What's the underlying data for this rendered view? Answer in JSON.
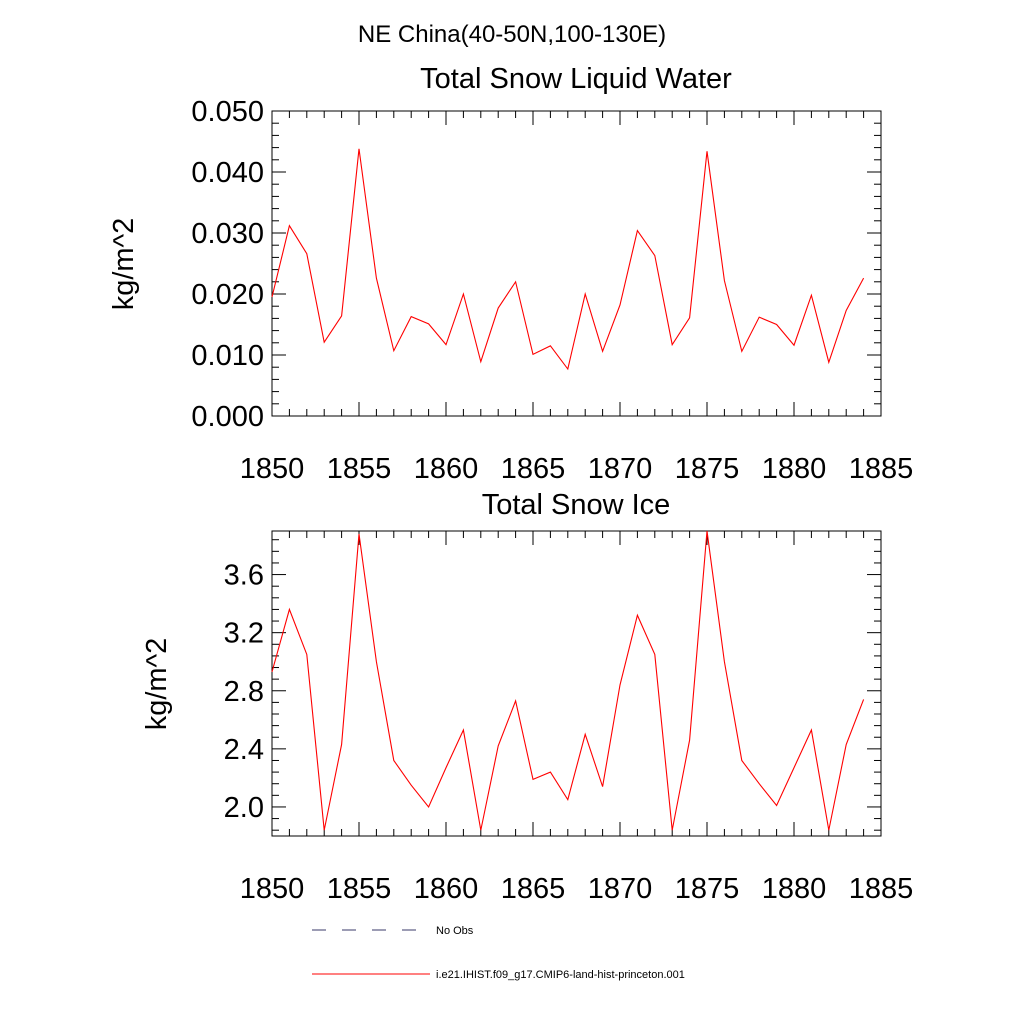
{
  "page_title": "NE China(40-50N,100-130E)",
  "chart_data": [
    {
      "type": "line",
      "title": "Total Snow Liquid Water",
      "xlabel": "",
      "ylabel": "kg/m^2",
      "xlim": [
        1850,
        1885
      ],
      "ylim": [
        0.0,
        0.05
      ],
      "xticks": [
        "1850",
        "1855",
        "1860",
        "1865",
        "1870",
        "1875",
        "1880",
        "1885"
      ],
      "yticks": [
        "0.000",
        "0.010",
        "0.020",
        "0.030",
        "0.040",
        "0.050"
      ],
      "grid": false,
      "series": [
        {
          "name": "i.e21.IHIST.f09_g17.CMIP6-land-hist-princeton.001",
          "color": "#ff0000",
          "x": [
            1850,
            1851,
            1852,
            1853,
            1854,
            1855,
            1856,
            1857,
            1858,
            1859,
            1860,
            1861,
            1862,
            1863,
            1864,
            1865,
            1866,
            1867,
            1868,
            1869,
            1870,
            1871,
            1872,
            1873,
            1874,
            1875,
            1876,
            1877,
            1878,
            1879,
            1880,
            1881,
            1882,
            1883,
            1884
          ],
          "values": [
            0.0195,
            0.0312,
            0.0266,
            0.0121,
            0.0164,
            0.0438,
            0.0226,
            0.0107,
            0.0163,
            0.0151,
            0.0117,
            0.02,
            0.0089,
            0.0177,
            0.022,
            0.0101,
            0.0115,
            0.0077,
            0.02,
            0.0106,
            0.0182,
            0.0304,
            0.0263,
            0.0117,
            0.0161,
            0.0434,
            0.0222,
            0.0106,
            0.0162,
            0.015,
            0.0116,
            0.0198,
            0.0088,
            0.0173,
            0.0226
          ]
        }
      ]
    },
    {
      "type": "line",
      "title": "Total Snow Ice",
      "xlabel": "",
      "ylabel": "kg/m^2",
      "xlim": [
        1850,
        1885
      ],
      "ylim": [
        1.8,
        3.9
      ],
      "xticks": [
        "1850",
        "1855",
        "1860",
        "1865",
        "1870",
        "1875",
        "1880",
        "1885"
      ],
      "yticks": [
        "2.0",
        "2.4",
        "2.8",
        "3.2",
        "3.6"
      ],
      "grid": false,
      "series": [
        {
          "name": "i.e21.IHIST.f09_g17.CMIP6-land-hist-princeton.001",
          "color": "#ff0000",
          "x": [
            1850,
            1851,
            1852,
            1853,
            1854,
            1855,
            1856,
            1857,
            1858,
            1859,
            1860,
            1861,
            1862,
            1863,
            1864,
            1865,
            1866,
            1867,
            1868,
            1869,
            1870,
            1871,
            1872,
            1873,
            1874,
            1875,
            1876,
            1877,
            1878,
            1879,
            1880,
            1881,
            1882,
            1883,
            1884
          ],
          "values": [
            2.93,
            3.36,
            3.05,
            1.84,
            2.43,
            3.88,
            3.0,
            2.32,
            2.15,
            2.0,
            2.27,
            2.53,
            1.84,
            2.42,
            2.73,
            2.19,
            2.24,
            2.05,
            2.5,
            2.14,
            2.84,
            3.32,
            3.05,
            1.84,
            2.46,
            3.9,
            3.0,
            2.32,
            2.16,
            2.01,
            2.27,
            2.53,
            1.84,
            2.43,
            2.74
          ]
        }
      ]
    }
  ],
  "legend": {
    "placement": "bottom",
    "items": [
      {
        "label": "No Obs",
        "style": "dashed",
        "color": "#3a3a6a"
      },
      {
        "label": "i.e21.IHIST.f09_g17.CMIP6-land-hist-princeton.001",
        "style": "solid",
        "color": "#ff0000"
      }
    ]
  }
}
